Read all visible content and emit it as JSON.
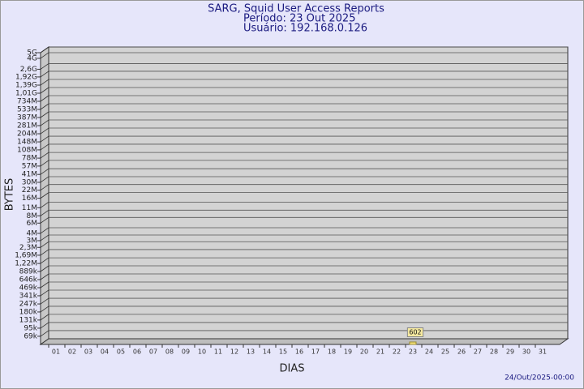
{
  "chart_data": {
    "type": "bar",
    "title": "SARG, Squid User Access Reports",
    "subtitle": [
      "Período: 23 Out 2025",
      "Usuário: 192.168.0.126"
    ],
    "y_label": "BYTES",
    "x_label": "DIAS",
    "footer": "24/Out/2025-00:00",
    "categories": [
      "01",
      "02",
      "03",
      "04",
      "05",
      "06",
      "07",
      "08",
      "09",
      "10",
      "11",
      "12",
      "13",
      "14",
      "15",
      "16",
      "17",
      "18",
      "19",
      "20",
      "21",
      "22",
      "23",
      "24",
      "25",
      "26",
      "27",
      "28",
      "29",
      "30",
      "31"
    ],
    "values": [
      null,
      null,
      null,
      null,
      null,
      null,
      null,
      null,
      null,
      null,
      null,
      null,
      null,
      null,
      null,
      null,
      null,
      null,
      null,
      null,
      null,
      null,
      602,
      null,
      null,
      null,
      null,
      null,
      null,
      null,
      null
    ],
    "color": "#f5e27a",
    "log_scale": true,
    "grid": true,
    "ylim": [
      50000,
      5000000000
    ],
    "yticks": [
      {
        "value": 5000000000,
        "label": "5G"
      },
      {
        "value": 4000000000,
        "label": "4G"
      },
      {
        "value": 2600000000,
        "label": "2,6G"
      },
      {
        "value": 1920000000,
        "label": "1,92G"
      },
      {
        "value": 1390000000,
        "label": "1,39G"
      },
      {
        "value": 1010000000,
        "label": "1,01G"
      },
      {
        "value": 734000000,
        "label": "734M"
      },
      {
        "value": 533000000,
        "label": "533M"
      },
      {
        "value": 387000000,
        "label": "387M"
      },
      {
        "value": 281000000,
        "label": "281M"
      },
      {
        "value": 204000000,
        "label": "204M"
      },
      {
        "value": 148000000,
        "label": "148M"
      },
      {
        "value": 108000000,
        "label": "108M"
      },
      {
        "value": 78000000,
        "label": "78M"
      },
      {
        "value": 57000000,
        "label": "57M"
      },
      {
        "value": 41000000,
        "label": "41M"
      },
      {
        "value": 30000000,
        "label": "30M"
      },
      {
        "value": 22000000,
        "label": "22M"
      },
      {
        "value": 16000000,
        "label": "16M"
      },
      {
        "value": 11000000,
        "label": "11M"
      },
      {
        "value": 8000000,
        "label": "8M"
      },
      {
        "value": 6000000,
        "label": "6M"
      },
      {
        "value": 4000000,
        "label": "4M"
      },
      {
        "value": 3000000,
        "label": "3M"
      },
      {
        "value": 2300000,
        "label": "2,3M"
      },
      {
        "value": 1690000,
        "label": "1,69M"
      },
      {
        "value": 1220000,
        "label": "1,22M"
      },
      {
        "value": 889000,
        "label": "889k"
      },
      {
        "value": 646000,
        "label": "646k"
      },
      {
        "value": 469000,
        "label": "469k"
      },
      {
        "value": 341000,
        "label": "341k"
      },
      {
        "value": 247000,
        "label": "247k"
      },
      {
        "value": 180000,
        "label": "180k"
      },
      {
        "value": 131000,
        "label": "131k"
      },
      {
        "value": 95000,
        "label": "95k"
      },
      {
        "value": 69000,
        "label": "69k"
      }
    ]
  }
}
